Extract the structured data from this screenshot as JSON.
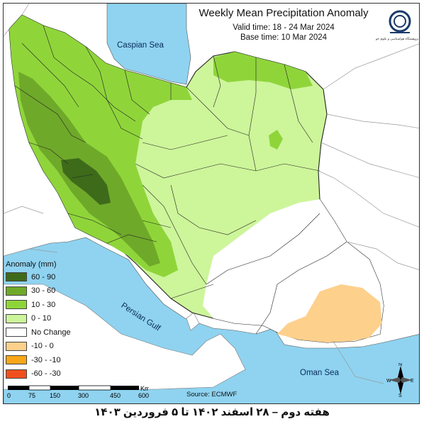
{
  "title": "Weekly Mean Precipitation Anomaly",
  "valid_time": "Valid time: 18 - 24 Mar 2024",
  "base_time": "Base time: 10 Mar 2024",
  "labels": {
    "caspian": "Caspian Sea",
    "persian_gulf": "Persian Gulf",
    "oman_sea": "Oman Sea"
  },
  "logo": {
    "icon": "organization-logo-icon",
    "text": "پژوهشگاه هواشناسی و علوم جو"
  },
  "legend": {
    "title": "Anomaly (mm)",
    "items": [
      {
        "label": "60 - 90",
        "color": "#3e6b1a"
      },
      {
        "label": "30 - 60",
        "color": "#6fa92a"
      },
      {
        "label": "10 - 30",
        "color": "#8fd53a"
      },
      {
        "label": "0 - 10",
        "color": "#cdf59a"
      },
      {
        "label": "No Change",
        "color": "#ffffff"
      },
      {
        "label": "-10 - 0",
        "color": "#fdd08c"
      },
      {
        "label": "-30 - -10",
        "color": "#f7a61a"
      },
      {
        "label": "-60 - -30",
        "color": "#f0501e"
      }
    ]
  },
  "scale": {
    "ticks": [
      "0",
      "75",
      "150",
      "300",
      "450",
      "600"
    ],
    "unit": "Km"
  },
  "source": "Source: ECMWF",
  "compass": {
    "n": "N",
    "s": "S",
    "e": "E",
    "w": "W"
  },
  "caption": "هفته دوم – ۲۸ اسفند ۱۴۰۲ تا ۵ فروردین ۱۴۰۳",
  "colors": {
    "sea": "#8fd3f0",
    "land": "#ffffff",
    "border": "#222222"
  }
}
